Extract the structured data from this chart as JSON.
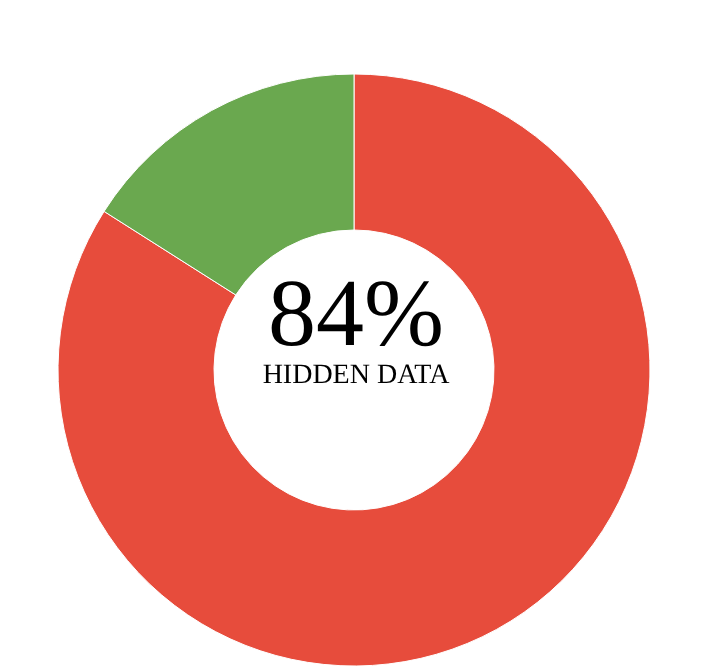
{
  "chart_data": {
    "type": "donut",
    "categories": [
      null,
      null
    ],
    "values": [
      84,
      16
    ],
    "colors": [
      "#e74c3c",
      "#6aa84f"
    ],
    "annotations": [
      "84%",
      "HIDDEN DATA"
    ]
  }
}
